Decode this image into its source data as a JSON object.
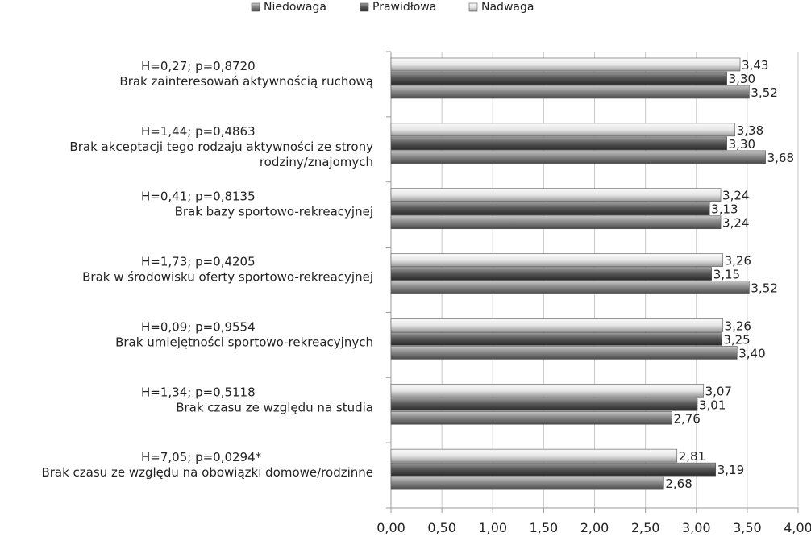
{
  "chart_data": {
    "type": "bar",
    "orientation": "horizontal",
    "legend_position": "top",
    "grid": true,
    "xlim": [
      0,
      4
    ],
    "x_ticks": [
      "0,00",
      "0,50",
      "1,00",
      "1,50",
      "2,00",
      "2,50",
      "3,00",
      "3,50",
      "4,00"
    ],
    "categories": [
      {
        "lines": [
          "Brak zainteresowań aktywnością ruchową"
        ],
        "stat": "H=0,27; p=0,8720"
      },
      {
        "lines": [
          "Brak akceptacji tego rodzaju aktywności ze strony",
          "rodziny/znajomych"
        ],
        "stat": "H=1,44; p=0,4863"
      },
      {
        "lines": [
          "Brak bazy sportowo-rekreacyjnej"
        ],
        "stat": "H=0,41; p=0,8135"
      },
      {
        "lines": [
          "Brak w środowisku oferty sportowo-rekreacyjnej"
        ],
        "stat": "H=1,73; p=0,4205"
      },
      {
        "lines": [
          "Brak umiejętności sportowo-rekreacyjnych"
        ],
        "stat": "H=0,09; p=0,9554"
      },
      {
        "lines": [
          "Brak czasu ze względu na studia"
        ],
        "stat": "H=1,34; p=0,5118"
      },
      {
        "lines": [
          "Brak czasu ze względu na obowiązki domowe/rodzinne"
        ],
        "stat": "H=7,05; p=0,0294*"
      }
    ],
    "series": [
      {
        "name": "Nadwaga",
        "color": "#e8e8e8",
        "values": [
          3.43,
          3.38,
          3.24,
          3.26,
          3.26,
          3.07,
          2.81
        ],
        "labels": [
          "3,43",
          "3,38",
          "3,24",
          "3,26",
          "3,26",
          "3,07",
          "2,81"
        ]
      },
      {
        "name": "Prawidłowa",
        "color": "#606060",
        "values": [
          3.3,
          3.3,
          3.13,
          3.15,
          3.25,
          3.01,
          3.19
        ],
        "labels": [
          "3,30",
          "3,30",
          "3,13",
          "3,15",
          "3,25",
          "3,01",
          "3,19"
        ]
      },
      {
        "name": "Niedowaga",
        "color": "#8c8c8c",
        "values": [
          3.52,
          3.68,
          3.24,
          3.52,
          3.4,
          2.76,
          2.68
        ],
        "labels": [
          "3,52",
          "3,68",
          "3,24",
          "3,52",
          "3,40",
          "2,76",
          "2,68"
        ]
      }
    ],
    "legend_order": [
      "Niedowaga",
      "Prawidłowa",
      "Nadwaga"
    ]
  }
}
